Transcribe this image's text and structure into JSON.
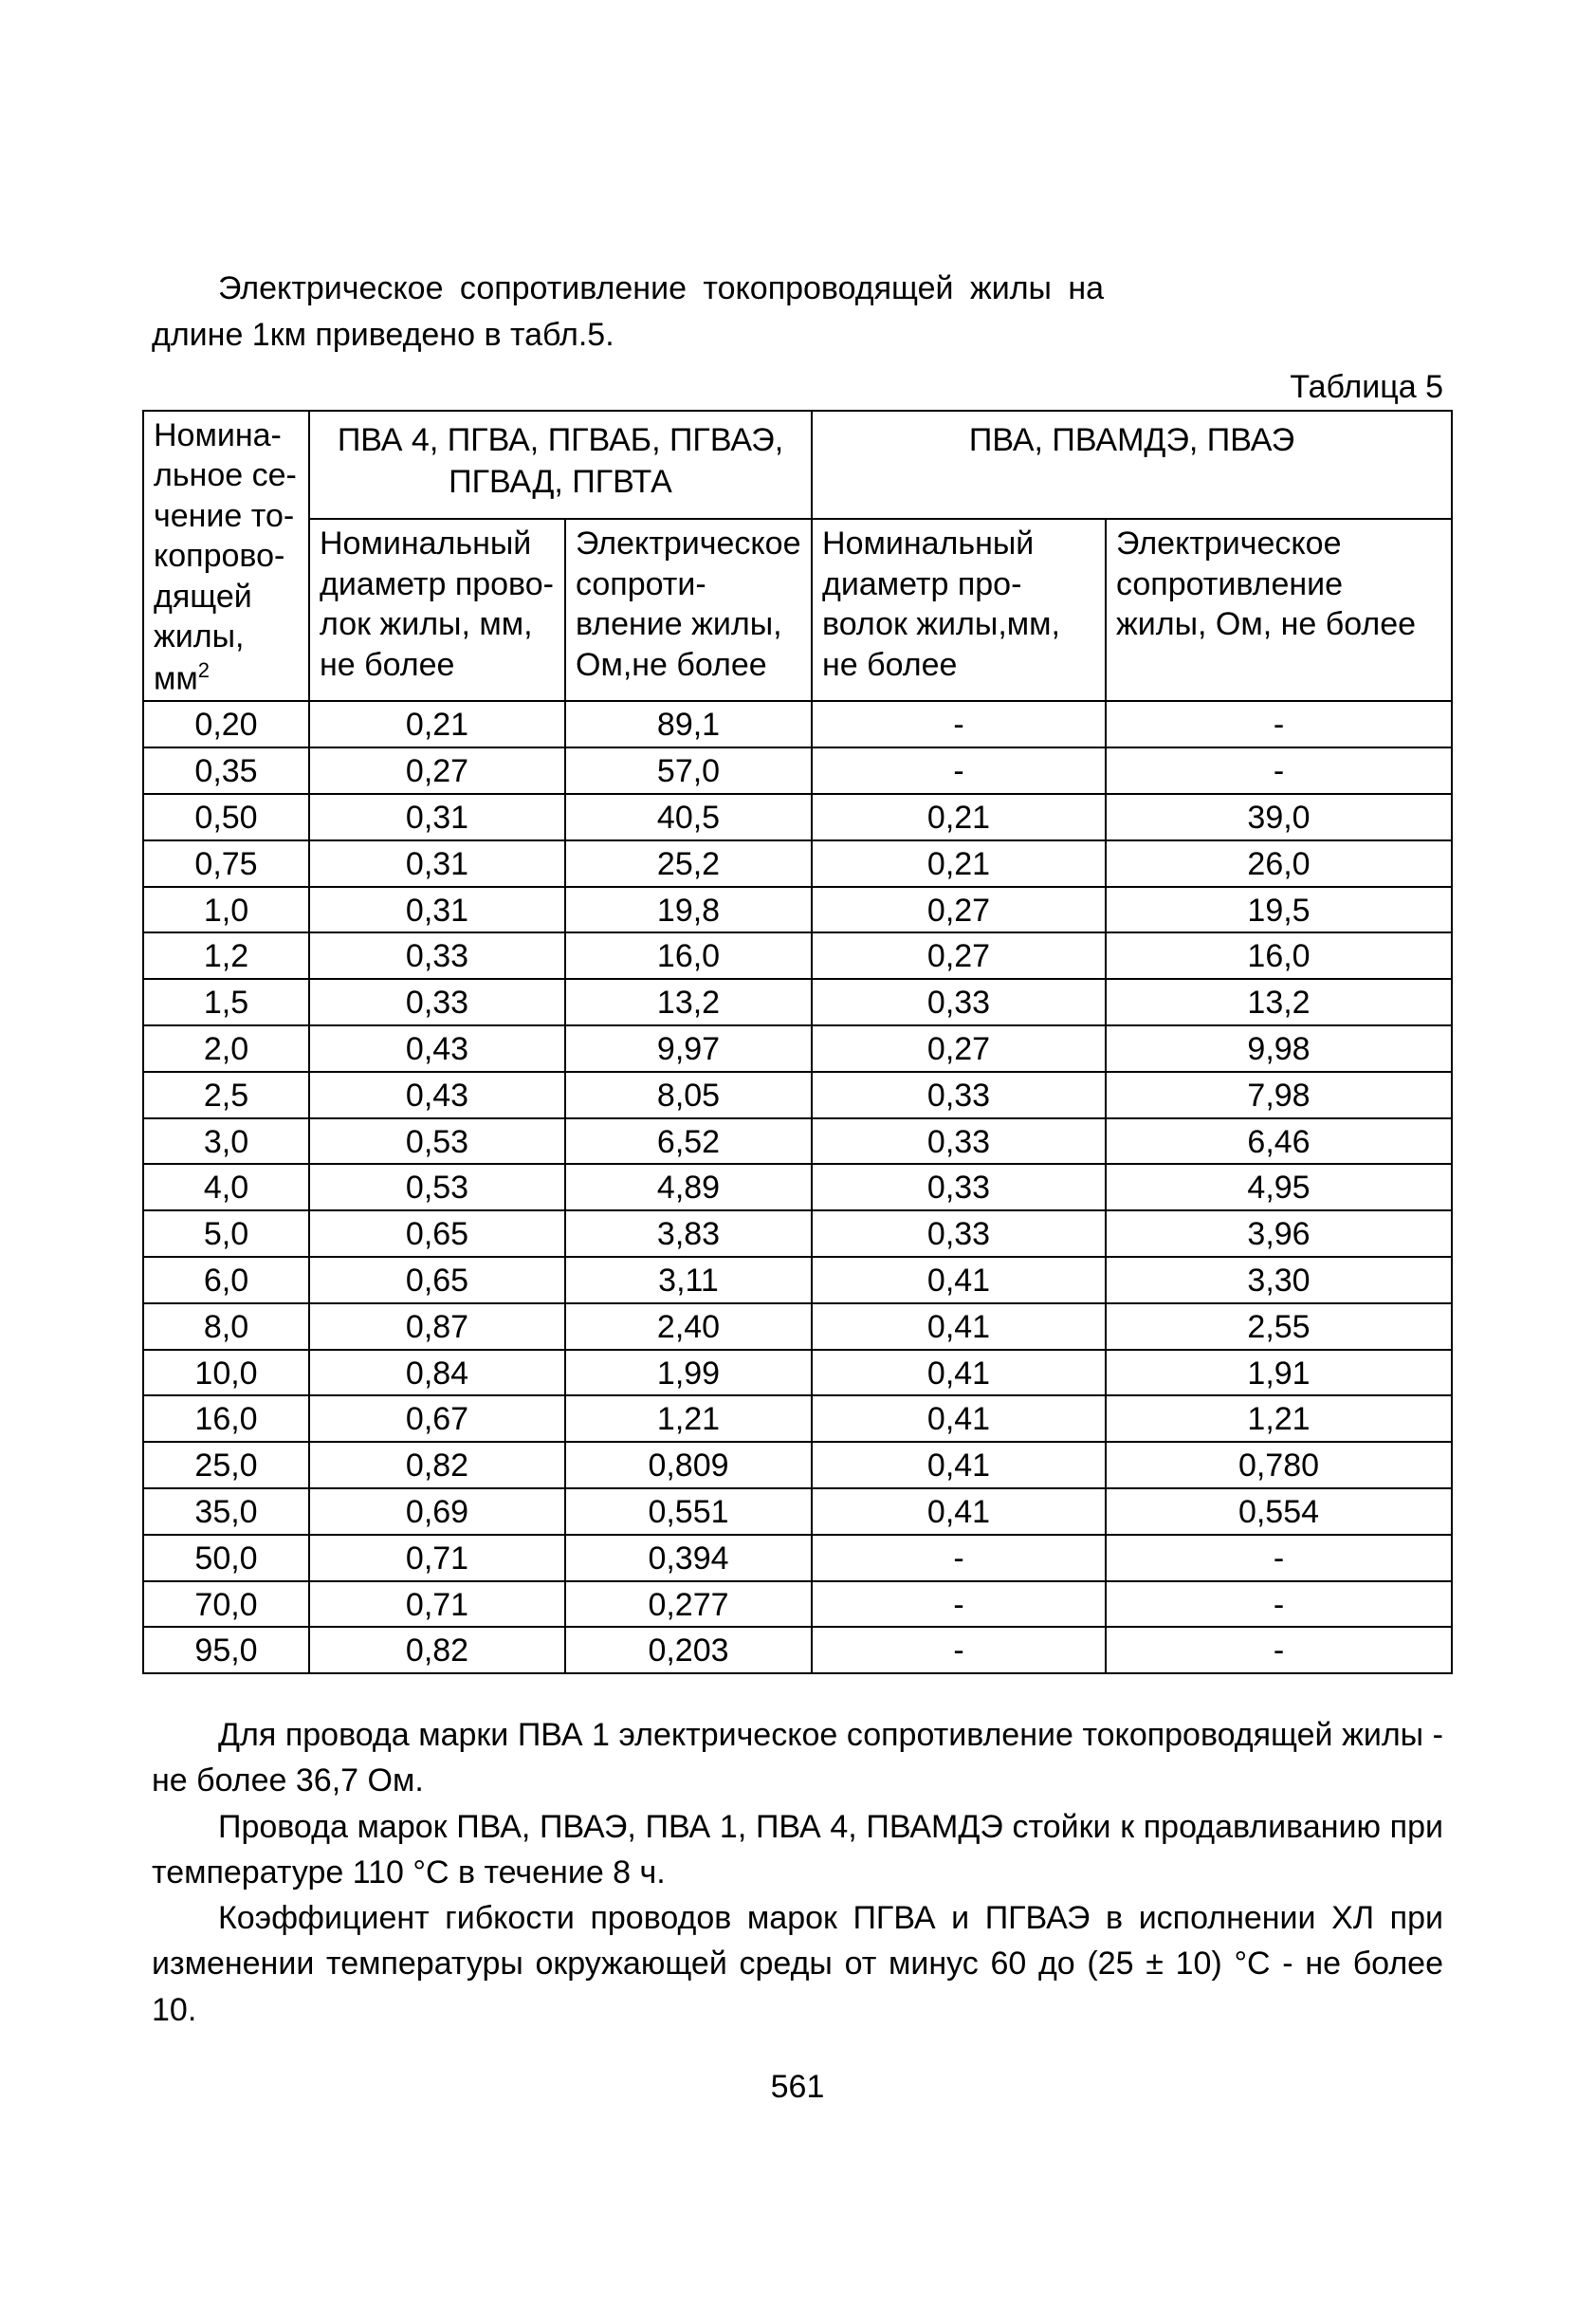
{
  "page": {
    "intro_line1": "Электрическое сопротивление токопроводящей жилы на",
    "intro_line2": "длине 1км приведено в табл.5.",
    "table_caption": "Таблица 5",
    "page_number": "561"
  },
  "table": {
    "header": {
      "col_a": "Номина­льное се­чение то­копрово­дящей жилы, мм",
      "col_a_sup": "2",
      "group1": "ПВА 4, ПГВА, ПГВАБ, ПГВАЭ, ПГВАД, ПГВТА",
      "group2": "ПВА, ПВАМДЭ, ПВАЭ",
      "col_b": "Номинальный диаметр прово­лок жилы, мм, не более",
      "col_c": "Электричес­кое сопроти­вление жилы, Ом,не более",
      "col_d": "Номинальный диаметр про­волок жилы,мм, не более",
      "col_e": "Электричес­кое сопротив­ление жилы, Ом, не более"
    },
    "rows": [
      [
        "0,20",
        "0,21",
        "89,1",
        "-",
        "-"
      ],
      [
        "0,35",
        "0,27",
        "57,0",
        "-",
        "-"
      ],
      [
        "0,50",
        "0,31",
        "40,5",
        "0,21",
        "39,0"
      ],
      [
        "0,75",
        "0,31",
        "25,2",
        "0,21",
        "26,0"
      ],
      [
        "1,0",
        "0,31",
        "19,8",
        "0,27",
        "19,5"
      ],
      [
        "1,2",
        "0,33",
        "16,0",
        "0,27",
        "16,0"
      ],
      [
        "1,5",
        "0,33",
        "13,2",
        "0,33",
        "13,2"
      ],
      [
        "2,0",
        "0,43",
        "9,97",
        "0,27",
        "9,98"
      ],
      [
        "2,5",
        "0,43",
        "8,05",
        "0,33",
        "7,98"
      ],
      [
        "3,0",
        "0,53",
        "6,52",
        "0,33",
        "6,46"
      ],
      [
        "4,0",
        "0,53",
        "4,89",
        "0,33",
        "4,95"
      ],
      [
        "5,0",
        "0,65",
        "3,83",
        "0,33",
        "3,96"
      ],
      [
        "6,0",
        "0,65",
        "3,11",
        "0,41",
        "3,30"
      ],
      [
        "8,0",
        "0,87",
        "2,40",
        "0,41",
        "2,55"
      ],
      [
        "10,0",
        "0,84",
        "1,99",
        "0,41",
        "1,91"
      ],
      [
        "16,0",
        "0,67",
        "1,21",
        "0,41",
        "1,21"
      ],
      [
        "25,0",
        "0,82",
        "0,809",
        "0,41",
        "0,780"
      ],
      [
        "35,0",
        "0,69",
        "0,551",
        "0,41",
        "0,554"
      ],
      [
        "50,0",
        "0,71",
        "0,394",
        "-",
        "-"
      ],
      [
        "70,0",
        "0,71",
        "0,277",
        "-",
        "-"
      ],
      [
        "95,0",
        "0,82",
        "0,203",
        "-",
        "-"
      ]
    ]
  },
  "body": {
    "p1": "Для провода марки ПВА 1 электрическое сопротивление то­копроводящей жилы - не более 36,7 Ом.",
    "p2": "Провода марок ПВА, ПВАЭ, ПВА 1, ПВА 4, ПВАМДЭ стойки к продавливанию при температуре 110 °С в течение 8 ч.",
    "p3": "Коэффициент гибкости проводов марок ПГВА и ПГВАЭ в исполнении ХЛ при изменении температуры окружающей среды от минус 60 до (25 ± 10) °С - не более 10."
  }
}
